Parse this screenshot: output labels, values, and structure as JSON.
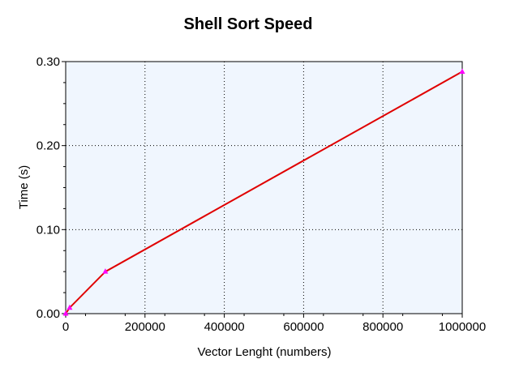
{
  "chart_data": {
    "type": "line",
    "title": "Shell Sort Speed",
    "xlabel": "Vector Lenght (numbers)",
    "ylabel": "Time (s)",
    "xlim": [
      0,
      1000000
    ],
    "ylim": [
      0,
      0.3
    ],
    "grid": true,
    "x_ticks": [
      0,
      200000,
      400000,
      600000,
      800000,
      1000000
    ],
    "x_tick_labels": [
      "0",
      "200000",
      "400000",
      "600000",
      "800000",
      "1000000"
    ],
    "y_ticks": [
      0,
      0.1,
      0.2,
      0.3
    ],
    "y_tick_labels": [
      "0.00",
      "0.10",
      "0.20",
      "0.30"
    ],
    "series": [
      {
        "color": "#e00000",
        "marker_color": "#ff00ff",
        "x": [
          0,
          10000,
          100000,
          1000000
        ],
        "y": [
          0.0,
          0.007,
          0.05,
          0.288
        ]
      }
    ],
    "plot_background": "#f0f6fe"
  }
}
